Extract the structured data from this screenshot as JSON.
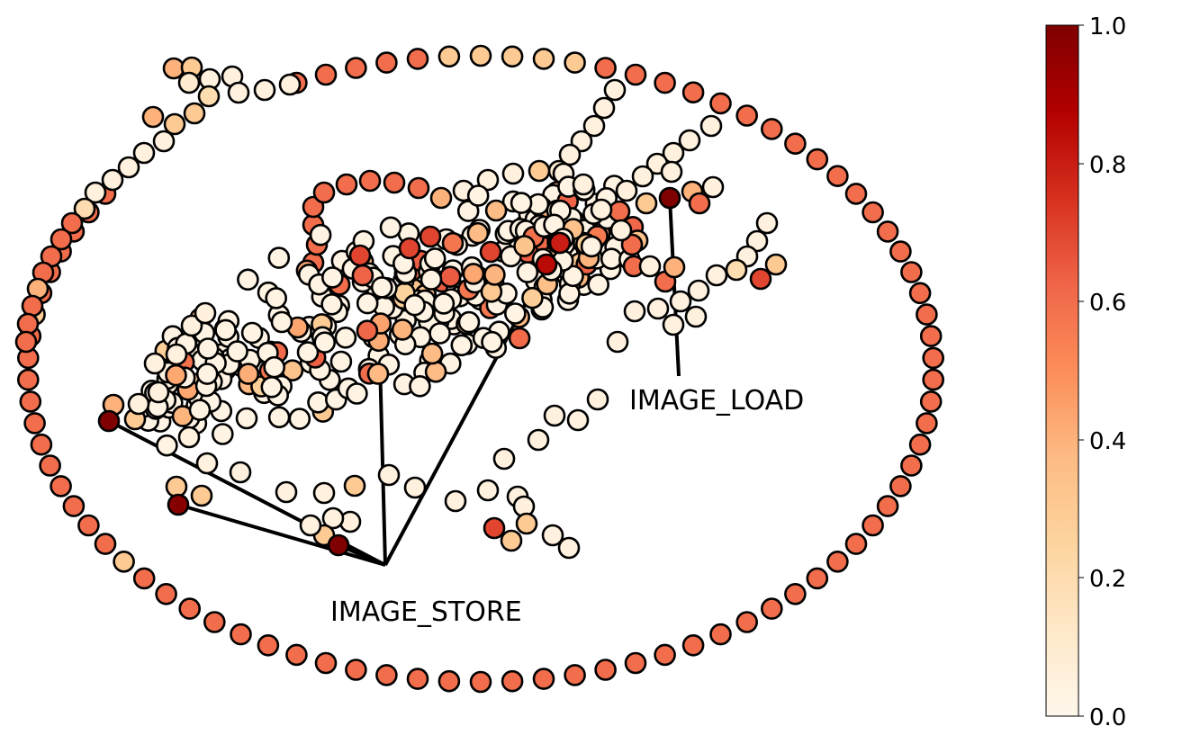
{
  "annotations": [
    {
      "id": "image-store",
      "text": "IMAGE_STORE"
    },
    {
      "id": "image-load",
      "text": "IMAGE_LOAD"
    }
  ],
  "colorbar": {
    "colormap": "OrRd",
    "range": [
      0.0,
      1.0
    ],
    "tick_labels": [
      "0.0",
      "0.2",
      "0.4",
      "0.6",
      "0.8",
      "1.0"
    ],
    "stops": [
      "#fff7ec",
      "#fee8c8",
      "#fdd49e",
      "#fdbb84",
      "#fc8d59",
      "#ef6548",
      "#d7301f",
      "#b30000",
      "#7f0000"
    ]
  },
  "colors": {
    "edge": "#000000",
    "node_stroke": "#000000",
    "ring_node": "#f4694b",
    "hot_node": "#8b0000"
  }
}
